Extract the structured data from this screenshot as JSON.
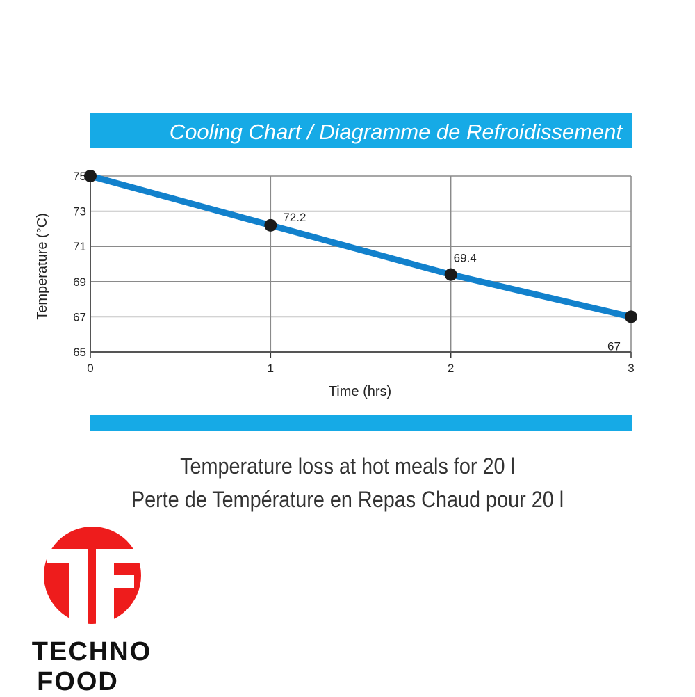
{
  "colors": {
    "accent": "#16aae6",
    "line": "#1281cc",
    "marker": "#1a1a1a",
    "grid": "#8a8a8a",
    "logo_red": "#ee1c1c"
  },
  "chart_data": {
    "type": "line",
    "title": "Cooling Chart / Diagramme de Refroidissement",
    "xlabel": "Time (hrs)",
    "ylabel": "Temperature (°C)",
    "x": [
      0,
      1,
      2,
      3
    ],
    "series": [
      {
        "values": [
          75,
          72.2,
          69.4,
          67
        ],
        "data_labels": [
          "",
          "72.2",
          "69.4",
          "67"
        ]
      }
    ],
    "xlim": [
      0,
      3
    ],
    "ylim": [
      65,
      75
    ],
    "x_ticks": [
      "0",
      "1",
      "2",
      "3"
    ],
    "y_ticks": [
      "65",
      "67",
      "69",
      "71",
      "73",
      "75"
    ],
    "grid": true
  },
  "captions": {
    "line1": "Temperature loss at hot meals for 20 l",
    "line2": "Perte de Température en Repas Chaud pour 20 l"
  },
  "logo": {
    "mark": "TF",
    "word1": "TECHNO",
    "word2": "FOOD"
  }
}
